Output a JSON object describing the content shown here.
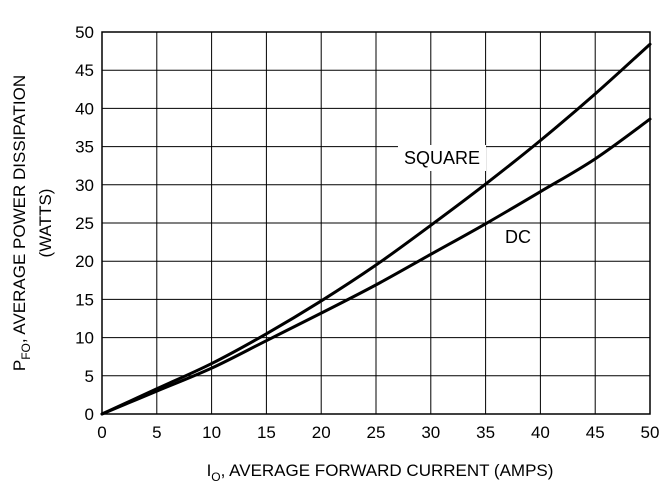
{
  "chart_data": {
    "type": "line",
    "xlabel": {
      "main": "I",
      "sub": "O",
      "rest": ", AVERAGE FORWARD CURRENT (AMPS)"
    },
    "ylabel": {
      "main": "P",
      "sub": "FO",
      "rest": ", AVERAGE POWER DISSIPATION",
      "line2": "(WATTS)"
    },
    "xlim": [
      0,
      50
    ],
    "ylim": [
      0,
      50
    ],
    "x_ticks": [
      0,
      5,
      10,
      15,
      20,
      25,
      30,
      35,
      40,
      45,
      50
    ],
    "y_ticks": [
      0,
      5,
      10,
      15,
      20,
      25,
      30,
      35,
      40,
      45,
      50
    ],
    "grid": true,
    "series": [
      {
        "name": "SQUARE",
        "x": [
          0,
          5,
          10,
          15,
          20,
          25,
          30,
          35,
          40,
          45,
          50
        ],
        "y": [
          0,
          3.3,
          6.6,
          10.5,
          14.8,
          19.5,
          24.7,
          30.1,
          35.8,
          41.9,
          48.4
        ]
      },
      {
        "name": "DC",
        "x": [
          0,
          5,
          10,
          15,
          20,
          25,
          30,
          35,
          40,
          45,
          50
        ],
        "y": [
          0,
          3.0,
          6.0,
          9.6,
          13.2,
          16.9,
          20.9,
          24.9,
          29.1,
          33.4,
          38.6
        ]
      }
    ]
  }
}
